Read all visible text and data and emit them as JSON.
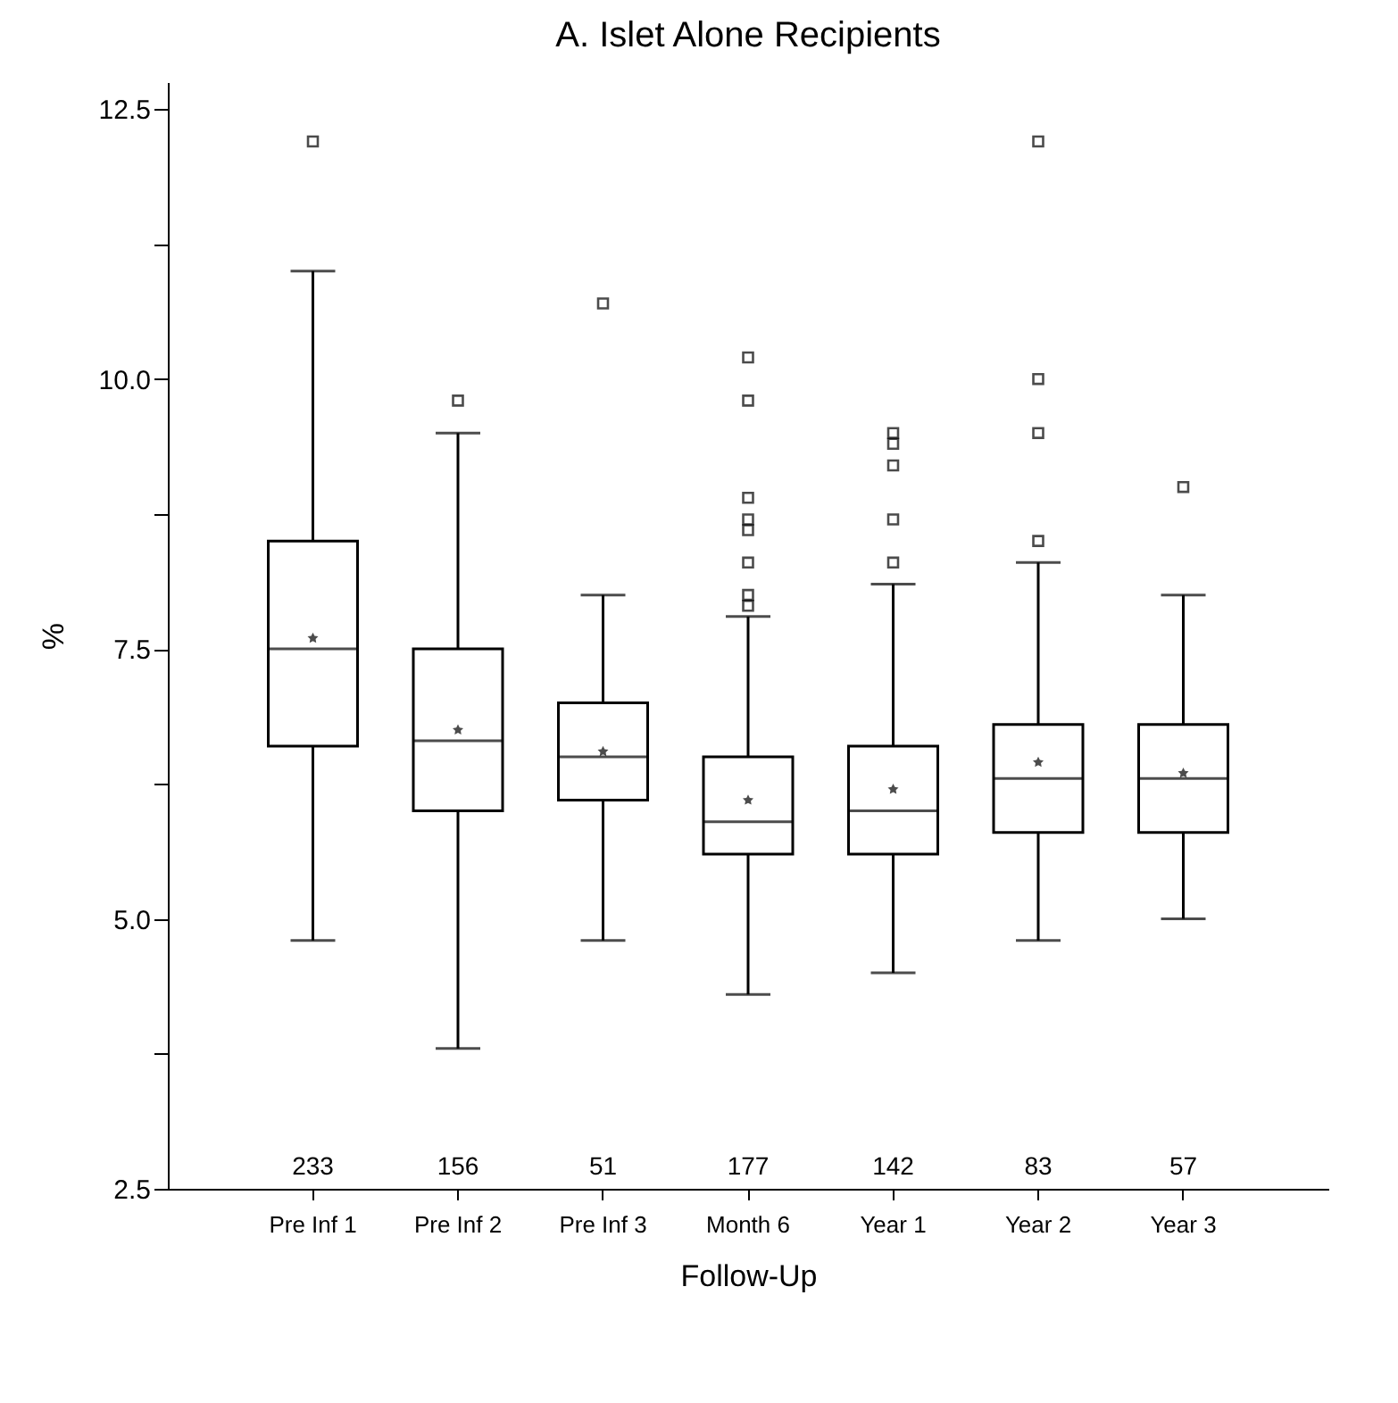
{
  "chart_data": {
    "type": "box",
    "title": "A. Islet Alone Recipients",
    "xlabel": "Follow-Up",
    "ylabel": "%",
    "categories": [
      "Pre Inf 1",
      "Pre Inf 2",
      "Pre Inf 3",
      "Month 6",
      "Year 1",
      "Year 2",
      "Year 3"
    ],
    "boxes": [
      {
        "low": 4.8,
        "q1": 6.6,
        "median": 7.5,
        "q3": 8.5,
        "high": 11.0,
        "mean": 7.6,
        "outliers": [
          12.2
        ]
      },
      {
        "low": 3.8,
        "q1": 6.0,
        "median": 6.65,
        "q3": 7.5,
        "high": 9.5,
        "mean": 6.75,
        "outliers": [
          9.8
        ]
      },
      {
        "low": 4.8,
        "q1": 6.1,
        "median": 6.5,
        "q3": 7.0,
        "high": 8.0,
        "mean": 6.55,
        "outliers": [
          10.7
        ]
      },
      {
        "low": 4.3,
        "q1": 5.6,
        "median": 5.9,
        "q3": 6.5,
        "high": 7.8,
        "mean": 6.1,
        "outliers": [
          10.2,
          9.8,
          8.9,
          8.7,
          8.6,
          8.3,
          8.0,
          7.9
        ]
      },
      {
        "low": 4.5,
        "q1": 5.6,
        "median": 6.0,
        "q3": 6.6,
        "high": 8.1,
        "mean": 6.2,
        "outliers": [
          9.5,
          9.4,
          9.2,
          8.7,
          8.3
        ]
      },
      {
        "low": 4.8,
        "q1": 5.8,
        "median": 6.3,
        "q3": 6.8,
        "high": 8.3,
        "mean": 6.45,
        "outliers": [
          12.2,
          10.0,
          9.5,
          8.5
        ]
      },
      {
        "low": 5.0,
        "q1": 5.8,
        "median": 6.3,
        "q3": 6.8,
        "high": 8.0,
        "mean": 6.35,
        "outliers": [
          9.0
        ]
      }
    ],
    "ylim": [
      2.5,
      12.75
    ],
    "yticks": [
      {
        "value": 2.5,
        "label": "2.5"
      },
      {
        "value": 3.75,
        "label": null
      },
      {
        "value": 5,
        "label": "5.0"
      },
      {
        "value": 6.25,
        "label": null
      },
      {
        "value": 7.5,
        "label": "7.5"
      },
      {
        "value": 8.75,
        "label": null
      },
      {
        "value": 10,
        "label": "10.0"
      },
      {
        "value": 11.25,
        "label": null
      },
      {
        "value": 12.5,
        "label": "12.5"
      }
    ],
    "grid": false,
    "annotations": [
      "233",
      "156",
      "51",
      "177",
      "142",
      "83",
      "57"
    ]
  }
}
